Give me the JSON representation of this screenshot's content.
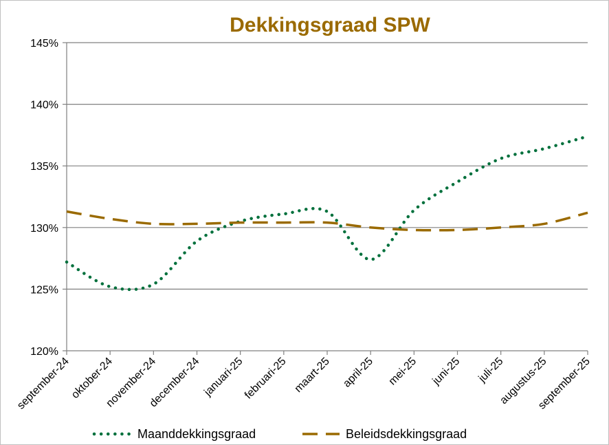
{
  "chart_data": {
    "type": "line",
    "title": "Dekkingsgraad  SPW",
    "xlabel": "",
    "ylabel": "",
    "ylim": [
      120,
      145
    ],
    "yticks": [
      120,
      125,
      130,
      135,
      140,
      145
    ],
    "ytick_labels": [
      "120%",
      "125%",
      "130%",
      "135%",
      "140%",
      "145%"
    ],
    "grid": "horizontal",
    "legend_position": "bottom",
    "categories": [
      "september-24",
      "oktober-24",
      "november-24",
      "december-24",
      "januari-25",
      "februari-25",
      "maart-25",
      "april-25",
      "mei-25",
      "juni-25",
      "juli-25",
      "augustus-25",
      "september-25"
    ],
    "series": [
      {
        "name": "Maanddekkingsgraad",
        "color": "#00703c",
        "style": "dotted",
        "values": [
          127.2,
          125.2,
          125.4,
          128.9,
          130.5,
          131.1,
          131.3,
          127.4,
          131.4,
          133.7,
          135.6,
          136.4,
          137.4
        ]
      },
      {
        "name": "Beleidsdekkingsgraad",
        "color": "#9a6a00",
        "style": "dashed",
        "values": [
          131.3,
          130.7,
          130.3,
          130.3,
          130.4,
          130.4,
          130.4,
          130.0,
          129.8,
          129.8,
          130.0,
          130.3,
          131.2
        ]
      }
    ]
  }
}
